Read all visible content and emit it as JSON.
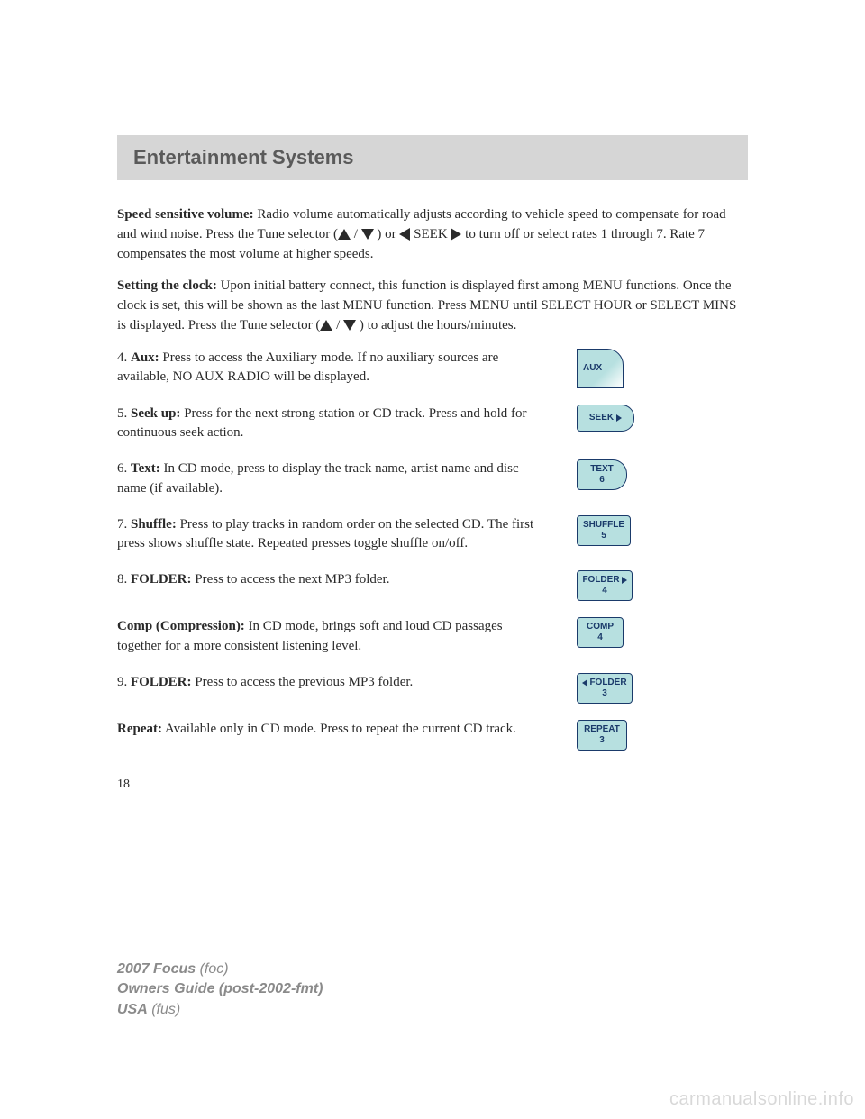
{
  "header": {
    "title": "Entertainment Systems"
  },
  "para1": {
    "lead": "Speed sensitive volume:",
    "text1": " Radio volume automatically adjusts according to vehicle speed to compensate for road and wind noise. Press the Tune selector (",
    "mid1": " / ",
    "text2": " ) or ",
    "seek": " SEEK",
    "text3": "   to turn off or select rates 1 through 7. Rate 7 compensates the most volume at higher speeds."
  },
  "para2": {
    "lead": "Setting the clock:",
    "text1": " Upon initial battery connect, this function is displayed first among MENU functions. Once the clock is set, this will be shown as the last MENU function. Press MENU until SELECT HOUR or SELECT MINS is displayed. Press the Tune selector (",
    "mid": " / ",
    "text2": " ) to adjust the hours/minutes."
  },
  "items": [
    {
      "num": "4. ",
      "lead": "Aux:",
      "text": " Press to access the Auxiliary mode. If no auxiliary sources are available, NO AUX RADIO will be displayed.",
      "btn": {
        "cls": "btn-aux",
        "line1": "AUX"
      }
    },
    {
      "num": "5. ",
      "lead": "Seek up:",
      "text": " Press for the next strong station or CD track. Press and hold for continuous seek action.",
      "btn": {
        "cls": "btn-seek",
        "line1": "SEEK",
        "triRight": true
      }
    },
    {
      "num": "6. ",
      "lead": "Text:",
      "text": " In CD mode, press to display the track name, artist name and disc name (if available).",
      "btn": {
        "cls": "btn-text",
        "line1": "TEXT",
        "line2": "6"
      }
    },
    {
      "num": "7. ",
      "lead": "Shuffle:",
      "text": " Press to play tracks in random order on the selected CD. The first press shows shuffle state. Repeated presses toggle shuffle on/off.",
      "btn": {
        "cls": "btn-shuffle",
        "line1": "SHUFFLE",
        "line2": "5"
      }
    },
    {
      "num": "8. ",
      "lead": "FOLDER:",
      "text": " Press to access the next MP3 folder.",
      "btn": {
        "cls": "btn-folderr",
        "line1": "FOLDER",
        "line2": "4",
        "triRightInline": true
      }
    },
    {
      "num": "",
      "lead": "Comp (Compression):",
      "text": " In CD mode, brings soft and loud CD passages together for a more consistent listening level.",
      "btn": {
        "cls": "btn-comp",
        "line1": "COMP",
        "line2": "4"
      }
    },
    {
      "num": "9. ",
      "lead": "FOLDER:",
      "text": " Press to access the previous MP3 folder.",
      "btn": {
        "cls": "btn-folderl",
        "line1": "FOLDER",
        "line2": "3",
        "triLeftInline": true
      }
    },
    {
      "num": "",
      "lead": "Repeat:",
      "text": " Available only in CD mode. Press to repeat the current CD track.",
      "btn": {
        "cls": "btn-repeat",
        "line1": "REPEAT",
        "line2": "3"
      }
    }
  ],
  "pageNumber": "18",
  "footer": {
    "l1a": "2007 Focus",
    "l1b": " (foc)",
    "l2a": "Owners Guide (post-2002-fmt)",
    "l3a": "USA",
    "l3b": " (fus)"
  },
  "watermark": "carmanualsonline.info"
}
